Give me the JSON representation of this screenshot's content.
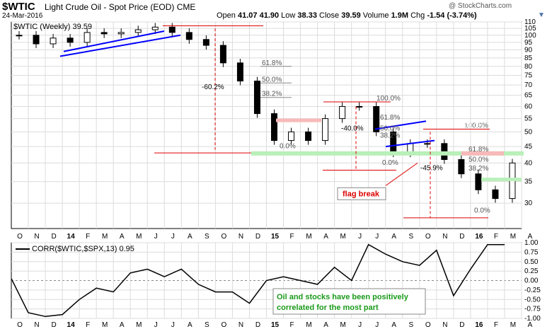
{
  "header": {
    "symbol": "$WTIC",
    "description": "Light Crude Oil - Spot Price (EOD)",
    "exchange": "CME",
    "date": "24-Mar-2016",
    "open_label": "Open",
    "open": "41.07",
    "high": "41.90",
    "low_label": "Low",
    "low": "38.33",
    "close_label": "Close",
    "close": "39.59",
    "volume_label": "Volume",
    "volume": "1.9M",
    "chg_label": "Chg",
    "chg": "-1.54 (-3.74%)",
    "watermark": "@ StockCharts.com",
    "dropdown_icon": "triangle-down-icon"
  },
  "chart_data": [
    {
      "type": "candlestick",
      "title": "$WTIC (Weekly) 39.59",
      "y_axis_side": "right",
      "y_scale": "log",
      "ylim": [
        25,
        110
      ],
      "yticks": [
        110,
        105,
        100,
        95,
        90,
        85,
        80,
        75,
        70,
        65,
        60,
        55,
        50,
        45,
        40,
        35,
        30
      ],
      "xticks": [
        "O",
        "N",
        "D",
        "14",
        "F",
        "M",
        "A",
        "M",
        "J",
        "J",
        "A",
        "S",
        "O",
        "N",
        "D",
        "15",
        "F",
        "M",
        "A",
        "M",
        "J",
        "J",
        "A",
        "S",
        "O",
        "N",
        "D",
        "16",
        "F",
        "M",
        "A"
      ],
      "x_range": [
        "2013-10",
        "2016-04"
      ],
      "series": [
        {
          "x": [
            "2013-10",
            "2013-11",
            "2013-12",
            "2014-01",
            "2014-02",
            "2014-03",
            "2014-04",
            "2014-05",
            "2014-06",
            "2014-07",
            "2014-08",
            "2014-09",
            "2014-10",
            "2014-11",
            "2014-12",
            "2015-01",
            "2015-02",
            "2015-03",
            "2015-04",
            "2015-05",
            "2015-06",
            "2015-07",
            "2015-08",
            "2015-09",
            "2015-10",
            "2015-11",
            "2015-12",
            "2016-01",
            "2016-02",
            "2016-03"
          ],
          "values": [
            100,
            94,
            98,
            95,
            102,
            101,
            102,
            104,
            106,
            102,
            97,
            93,
            82,
            72,
            57,
            47,
            50,
            47,
            55,
            60,
            60,
            50,
            43,
            46,
            46,
            41,
            37,
            33,
            31,
            40
          ]
        }
      ],
      "annotations": [
        "-60.2%",
        "61.8%",
        "50.0%",
        "38.2%",
        "100.0%",
        "0.0%",
        "-40.0%",
        "61.8%",
        "50.0%",
        "38.2%",
        "100.0%",
        "0.0%",
        "-45.9%",
        "flag break",
        "61.8%",
        "50.0%",
        "38.2%",
        "100.0%",
        "0.0%"
      ],
      "grid": true
    },
    {
      "type": "line",
      "title": "CORR($WTIC,$SPX,13) 0.95",
      "y_axis_side": "right",
      "ylim": [
        -1.0,
        1.0
      ],
      "yticks": [
        "1.00",
        "0.75",
        "0.50",
        "0.25",
        "0.00",
        "-0.25",
        "-0.50",
        "-0.75",
        "-1.00"
      ],
      "xticks": [
        "O",
        "N",
        "D",
        "14",
        "F",
        "M",
        "A",
        "M",
        "J",
        "J",
        "A",
        "S",
        "O",
        "N",
        "D",
        "15",
        "F",
        "M",
        "A",
        "M",
        "J",
        "J",
        "A",
        "S",
        "O",
        "N",
        "D",
        "16",
        "F",
        "M",
        "A"
      ],
      "x_range": [
        "2013-10",
        "2016-04"
      ],
      "series": [
        {
          "x": [
            "2013-09",
            "2013-11",
            "2013-12",
            "2014-01",
            "2014-02",
            "2014-03",
            "2014-04",
            "2014-05",
            "2014-06",
            "2014-07",
            "2014-08",
            "2014-09",
            "2014-10",
            "2014-11",
            "2014-12",
            "2015-01",
            "2015-02",
            "2015-03",
            "2015-04",
            "2015-05",
            "2015-06",
            "2015-07",
            "2015-08",
            "2015-09",
            "2015-10",
            "2015-11",
            "2015-12",
            "2016-01",
            "2016-02",
            "2016-03"
          ],
          "values": [
            0.05,
            -0.85,
            -0.95,
            -0.9,
            -0.5,
            -0.2,
            -0.3,
            0.2,
            0.3,
            0.1,
            0.3,
            -0.1,
            -0.3,
            -0.3,
            -0.6,
            0.0,
            0.1,
            0.0,
            -0.1,
            0.35,
            0.0,
            0.95,
            0.7,
            0.5,
            0.4,
            0.8,
            -0.4,
            0.3,
            0.95,
            0.95
          ]
        }
      ],
      "annotation": "Oil and stocks have been positively correlated for the most part",
      "grid": true
    }
  ]
}
